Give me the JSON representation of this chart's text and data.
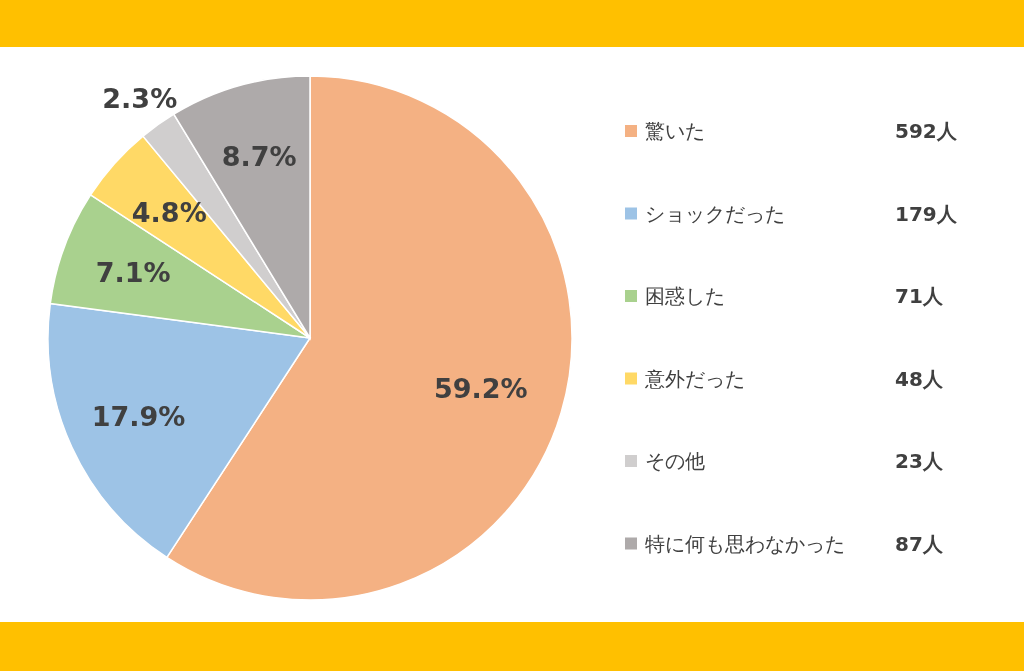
{
  "chart_data": {
    "type": "pie",
    "categories": [
      "驚いた",
      "ショックだった",
      "困惑した",
      "意外だった",
      "その他",
      "特に何も思わなかった"
    ],
    "values": [
      59.2,
      17.9,
      7.1,
      4.8,
      2.3,
      8.7
    ],
    "value_labels": [
      "59.2%",
      "17.9%",
      "7.1%",
      "4.8%",
      "2.3%",
      "8.7%"
    ],
    "colors": [
      "#f4b183",
      "#9dc3e6",
      "#a9d18e",
      "#ffd966",
      "#d0cece",
      "#aeaaaa"
    ],
    "annotations": [
      "592人",
      "179人",
      "71人",
      "48人",
      "23人",
      "87人"
    ],
    "legend": "right"
  }
}
